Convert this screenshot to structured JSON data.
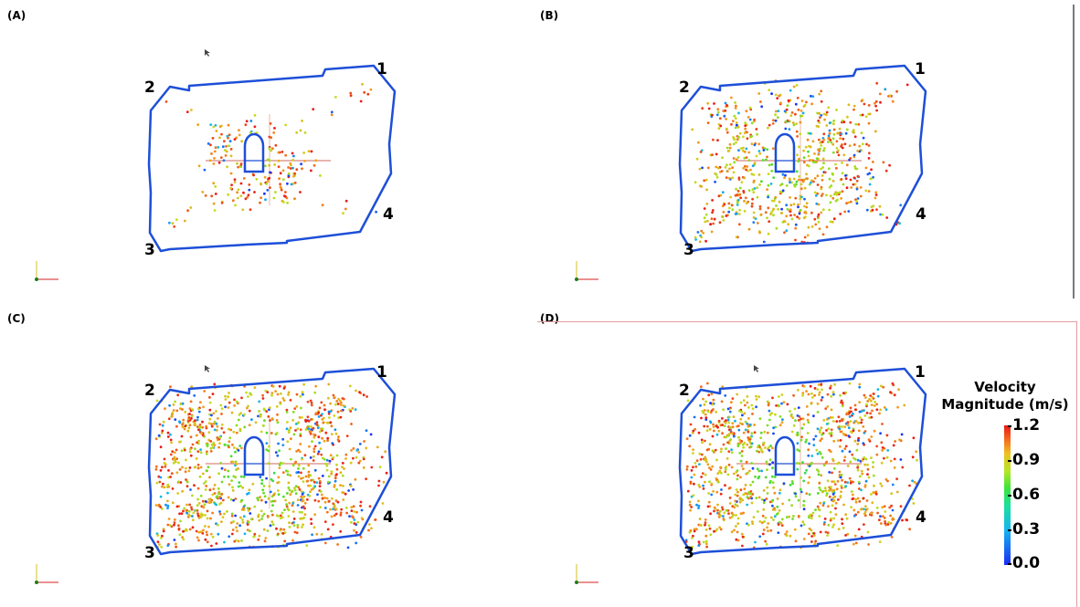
{
  "panels": [
    {
      "id": "a",
      "label": "(A)",
      "density": 0.5
    },
    {
      "id": "b",
      "label": "(B)",
      "density": 1.6
    },
    {
      "id": "c",
      "label": "(C)",
      "density": 2.6
    },
    {
      "id": "d",
      "label": "(D)",
      "density": 2.6
    }
  ],
  "corner_labels": [
    "1",
    "2",
    "3",
    "4"
  ],
  "legend": {
    "title_line1": "Velocity",
    "title_line2": "Magnitude (m/s)",
    "ticks": [
      "1.2",
      "0.9",
      "0.6",
      "0.3",
      "0.0"
    ],
    "min": 0.0,
    "max": 1.2
  },
  "colors": {
    "boundary": "#1d4fd8",
    "low": "#1a2cf5",
    "high": "#e81818"
  }
}
